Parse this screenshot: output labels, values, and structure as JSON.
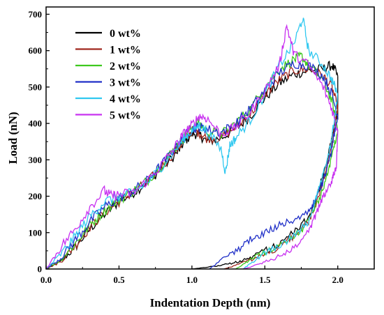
{
  "chart_data": {
    "type": "line",
    "xlabel": "Indentation Depth (nm)",
    "ylabel": "Load (nN)",
    "xlim": [
      0,
      2.25
    ],
    "ylim": [
      0,
      720
    ],
    "xticks": [
      0.0,
      0.5,
      1.0,
      1.5,
      2.0
    ],
    "xtick_labels": [
      "0.0",
      "0.5",
      "1.0",
      "1.5",
      "2.0"
    ],
    "yticks": [
      0,
      100,
      200,
      300,
      400,
      500,
      600,
      700
    ],
    "ytick_labels": [
      "0",
      "100",
      "200",
      "300",
      "400",
      "500",
      "600",
      "700"
    ],
    "grid": false,
    "legend_position": "top-left",
    "series": [
      {
        "name": "0 wt%",
        "color": "#000000",
        "loading": [
          [
            0,
            0
          ],
          [
            0.1,
            20
          ],
          [
            0.2,
            60
          ],
          [
            0.3,
            110
          ],
          [
            0.4,
            150
          ],
          [
            0.5,
            185
          ],
          [
            0.6,
            210
          ],
          [
            0.7,
            240
          ],
          [
            0.8,
            280
          ],
          [
            0.9,
            320
          ],
          [
            0.95,
            350
          ],
          [
            1.0,
            372
          ],
          [
            1.05,
            370
          ],
          [
            1.1,
            350
          ],
          [
            1.2,
            360
          ],
          [
            1.3,
            385
          ],
          [
            1.4,
            420
          ],
          [
            1.5,
            470
          ],
          [
            1.6,
            510
          ],
          [
            1.7,
            535
          ],
          [
            1.8,
            545
          ],
          [
            1.9,
            550
          ],
          [
            1.96,
            560
          ],
          [
            2.0,
            530
          ]
        ],
        "unloading": [
          [
            2.0,
            530
          ],
          [
            2.0,
            420
          ],
          [
            1.98,
            400
          ],
          [
            1.95,
            340
          ],
          [
            1.9,
            260
          ],
          [
            1.85,
            190
          ],
          [
            1.8,
            140
          ],
          [
            1.7,
            100
          ],
          [
            1.6,
            70
          ],
          [
            1.5,
            50
          ],
          [
            1.4,
            30
          ],
          [
            1.3,
            18
          ],
          [
            1.2,
            10
          ],
          [
            1.1,
            5
          ],
          [
            1.0,
            0
          ]
        ]
      },
      {
        "name": "1 wt%",
        "color": "#a0281e",
        "loading": [
          [
            0,
            0
          ],
          [
            0.1,
            20
          ],
          [
            0.2,
            65
          ],
          [
            0.3,
            115
          ],
          [
            0.4,
            155
          ],
          [
            0.5,
            185
          ],
          [
            0.6,
            212
          ],
          [
            0.7,
            240
          ],
          [
            0.8,
            285
          ],
          [
            0.9,
            330
          ],
          [
            0.95,
            355
          ],
          [
            1.0,
            380
          ],
          [
            1.05,
            375
          ],
          [
            1.1,
            360
          ],
          [
            1.2,
            360
          ],
          [
            1.3,
            390
          ],
          [
            1.4,
            425
          ],
          [
            1.5,
            480
          ],
          [
            1.6,
            520
          ],
          [
            1.7,
            545
          ],
          [
            1.8,
            550
          ],
          [
            1.9,
            530
          ],
          [
            1.96,
            500
          ],
          [
            2.0,
            440
          ]
        ],
        "unloading": [
          [
            2.0,
            440
          ],
          [
            1.98,
            400
          ],
          [
            1.95,
            320
          ],
          [
            1.9,
            240
          ],
          [
            1.85,
            180
          ],
          [
            1.8,
            130
          ],
          [
            1.7,
            90
          ],
          [
            1.6,
            60
          ],
          [
            1.5,
            40
          ],
          [
            1.4,
            25
          ],
          [
            1.3,
            10
          ],
          [
            1.22,
            0
          ]
        ]
      },
      {
        "name": "2 wt%",
        "color": "#3ec81e",
        "loading": [
          [
            0,
            0
          ],
          [
            0.1,
            25
          ],
          [
            0.2,
            70
          ],
          [
            0.3,
            120
          ],
          [
            0.4,
            160
          ],
          [
            0.5,
            190
          ],
          [
            0.6,
            215
          ],
          [
            0.7,
            245
          ],
          [
            0.8,
            290
          ],
          [
            0.9,
            340
          ],
          [
            0.95,
            365
          ],
          [
            1.0,
            390
          ],
          [
            1.05,
            400
          ],
          [
            1.1,
            380
          ],
          [
            1.2,
            370
          ],
          [
            1.3,
            400
          ],
          [
            1.4,
            440
          ],
          [
            1.5,
            500
          ],
          [
            1.6,
            550
          ],
          [
            1.7,
            575
          ],
          [
            1.75,
            585
          ],
          [
            1.8,
            560
          ],
          [
            1.9,
            520
          ],
          [
            1.96,
            460
          ],
          [
            2.0,
            380
          ]
        ],
        "unloading": [
          [
            2.0,
            380
          ],
          [
            1.97,
            330
          ],
          [
            1.93,
            260
          ],
          [
            1.88,
            200
          ],
          [
            1.82,
            150
          ],
          [
            1.75,
            105
          ],
          [
            1.65,
            75
          ],
          [
            1.55,
            55
          ],
          [
            1.45,
            38
          ],
          [
            1.38,
            20
          ],
          [
            1.3,
            0
          ]
        ]
      },
      {
        "name": "3 wt%",
        "color": "#2030c8",
        "loading": [
          [
            0,
            0
          ],
          [
            0.1,
            30
          ],
          [
            0.2,
            80
          ],
          [
            0.3,
            130
          ],
          [
            0.4,
            170
          ],
          [
            0.5,
            195
          ],
          [
            0.6,
            215
          ],
          [
            0.7,
            245
          ],
          [
            0.8,
            290
          ],
          [
            0.9,
            340
          ],
          [
            0.95,
            365
          ],
          [
            1.0,
            385
          ],
          [
            1.05,
            390
          ],
          [
            1.1,
            385
          ],
          [
            1.2,
            375
          ],
          [
            1.3,
            400
          ],
          [
            1.4,
            440
          ],
          [
            1.5,
            490
          ],
          [
            1.6,
            540
          ],
          [
            1.7,
            565
          ],
          [
            1.8,
            560
          ],
          [
            1.9,
            530
          ],
          [
            1.96,
            480
          ],
          [
            2.0,
            420
          ]
        ],
        "unloading": [
          [
            2.0,
            420
          ],
          [
            1.98,
            380
          ],
          [
            1.95,
            310
          ],
          [
            1.9,
            240
          ],
          [
            1.85,
            190
          ],
          [
            1.8,
            160
          ],
          [
            1.7,
            135
          ],
          [
            1.6,
            120
          ],
          [
            1.5,
            100
          ],
          [
            1.4,
            80
          ],
          [
            1.3,
            50
          ],
          [
            1.2,
            25
          ],
          [
            1.12,
            0
          ]
        ]
      },
      {
        "name": "4 wt%",
        "color": "#30c8f0",
        "loading": [
          [
            0,
            0
          ],
          [
            0.1,
            40
          ],
          [
            0.2,
            90
          ],
          [
            0.3,
            145
          ],
          [
            0.4,
            185
          ],
          [
            0.5,
            200
          ],
          [
            0.6,
            210
          ],
          [
            0.7,
            240
          ],
          [
            0.8,
            285
          ],
          [
            0.9,
            335
          ],
          [
            0.95,
            360
          ],
          [
            1.0,
            380
          ],
          [
            1.05,
            395
          ],
          [
            1.1,
            380
          ],
          [
            1.2,
            330
          ],
          [
            1.23,
            265
          ],
          [
            1.26,
            340
          ],
          [
            1.3,
            360
          ],
          [
            1.4,
            410
          ],
          [
            1.5,
            480
          ],
          [
            1.6,
            560
          ],
          [
            1.7,
            620
          ],
          [
            1.76,
            690
          ],
          [
            1.8,
            600
          ],
          [
            1.9,
            560
          ],
          [
            1.96,
            520
          ],
          [
            2.0,
            480
          ]
        ],
        "unloading": [
          [
            2.0,
            480
          ],
          [
            1.98,
            420
          ],
          [
            1.95,
            340
          ],
          [
            1.9,
            260
          ],
          [
            1.85,
            190
          ],
          [
            1.8,
            130
          ],
          [
            1.7,
            90
          ],
          [
            1.6,
            65
          ],
          [
            1.5,
            45
          ],
          [
            1.42,
            20
          ],
          [
            1.35,
            0
          ]
        ]
      },
      {
        "name": "5 wt%",
        "color": "#c830f0",
        "loading": [
          [
            0,
            0
          ],
          [
            0.1,
            60
          ],
          [
            0.2,
            110
          ],
          [
            0.3,
            170
          ],
          [
            0.4,
            215
          ],
          [
            0.45,
            200
          ],
          [
            0.5,
            205
          ],
          [
            0.6,
            210
          ],
          [
            0.7,
            245
          ],
          [
            0.8,
            290
          ],
          [
            0.9,
            345
          ],
          [
            0.95,
            375
          ],
          [
            1.0,
            395
          ],
          [
            1.05,
            420
          ],
          [
            1.1,
            415
          ],
          [
            1.2,
            370
          ],
          [
            1.3,
            390
          ],
          [
            1.4,
            430
          ],
          [
            1.5,
            490
          ],
          [
            1.6,
            560
          ],
          [
            1.65,
            670
          ],
          [
            1.7,
            590
          ],
          [
            1.8,
            560
          ],
          [
            1.9,
            500
          ],
          [
            1.96,
            440
          ],
          [
            2.0,
            380
          ]
        ],
        "unloading": [
          [
            2.0,
            380
          ],
          [
            1.99,
            280
          ],
          [
            1.97,
            260
          ],
          [
            1.95,
            230
          ],
          [
            1.9,
            200
          ],
          [
            1.85,
            150
          ],
          [
            1.8,
            100
          ],
          [
            1.7,
            60
          ],
          [
            1.6,
            35
          ],
          [
            1.5,
            20
          ],
          [
            1.4,
            5
          ],
          [
            1.35,
            0
          ]
        ]
      }
    ]
  }
}
